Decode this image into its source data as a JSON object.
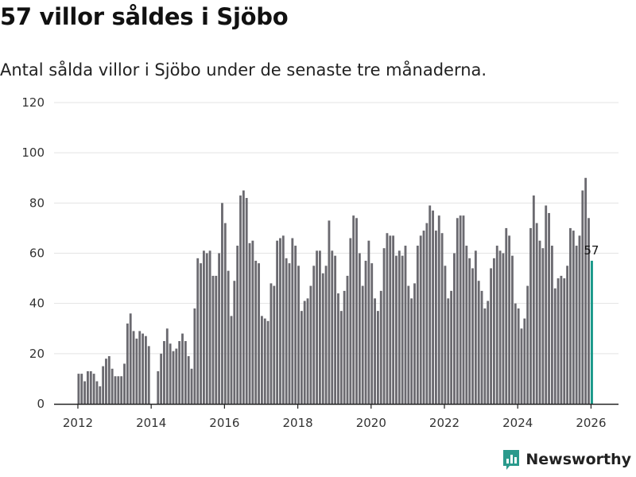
{
  "header": {
    "title": "57 villor såldes i Sjöbo",
    "subtitle": "Antal sålda villor i Sjöbo under de senaste tre månaderna."
  },
  "brand": {
    "name": "Newsworthy",
    "color": "#2a9a8c"
  },
  "colors": {
    "bar": "#6b6a70",
    "highlight": "#1a998a",
    "grid": "#e3e3e3",
    "axis": "#222222"
  },
  "chart_data": {
    "type": "bar",
    "title": "57 villor såldes i Sjöbo",
    "xlabel": "",
    "ylabel": "",
    "ylim": [
      0,
      120
    ],
    "xlim": [
      2011.35,
      2026.75
    ],
    "yticks": [
      0,
      20,
      40,
      60,
      80,
      100,
      120
    ],
    "xticks": [
      2012,
      2014,
      2016,
      2018,
      2020,
      2022,
      2024,
      2026
    ],
    "start_month": "2012-01",
    "values": [
      12,
      12,
      9,
      13,
      13,
      12,
      9,
      7,
      15,
      18,
      19,
      14,
      11,
      11,
      11,
      16,
      32,
      36,
      29,
      26,
      29,
      28,
      27,
      23,
      0,
      0,
      13,
      20,
      25,
      30,
      24,
      21,
      22,
      25,
      28,
      25,
      19,
      14,
      38,
      58,
      56,
      61,
      60,
      61,
      51,
      51,
      60,
      80,
      72,
      53,
      35,
      49,
      63,
      83,
      85,
      82,
      64,
      65,
      57,
      56,
      35,
      34,
      33,
      48,
      47,
      65,
      66,
      67,
      58,
      56,
      66,
      63,
      55,
      37,
      41,
      42,
      47,
      55,
      61,
      61,
      52,
      55,
      73,
      61,
      59,
      44,
      37,
      45,
      51,
      66,
      75,
      74,
      60,
      47,
      57,
      65,
      56,
      42,
      37,
      45,
      62,
      68,
      67,
      67,
      59,
      61,
      59,
      63,
      47,
      42,
      48,
      63,
      67,
      69,
      72,
      79,
      77,
      69,
      75,
      68,
      55,
      42,
      45,
      60,
      74,
      75,
      75,
      63,
      58,
      54,
      61,
      49,
      45,
      38,
      41,
      54,
      58,
      63,
      61,
      60,
      70,
      67,
      59,
      40,
      38,
      30,
      34,
      47,
      70,
      83,
      72,
      65,
      62,
      79,
      76,
      63,
      46,
      50,
      51,
      50,
      55,
      70,
      69,
      63,
      67,
      85,
      90,
      74,
      57
    ],
    "highlight_label": "57"
  }
}
